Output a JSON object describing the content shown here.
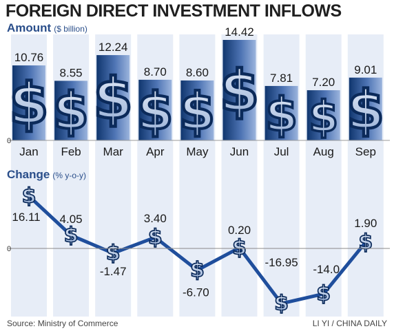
{
  "title": "FOREIGN DIRECT INVESTMENT INFLOWS",
  "source": "Source: Ministry of Commerce",
  "credit": "LI YI / CHINA DAILY",
  "colors": {
    "bar_dark": "#10366e",
    "bar_light": "#9bb4dd",
    "line": "#1f4e9c",
    "stripe": "#e7edf7",
    "label_blue": "#2a4e8a"
  },
  "chart_data": [
    {
      "type": "bar",
      "title": "Amount",
      "ylabel": "($ billion)",
      "categories": [
        "Jan",
        "Feb",
        "Mar",
        "Apr",
        "May",
        "Jun",
        "Jul",
        "Aug",
        "Sep"
      ],
      "values": [
        10.76,
        8.55,
        12.24,
        8.7,
        8.6,
        14.42,
        7.81,
        7.2,
        9.01
      ],
      "value_labels": [
        "10.76",
        "8.55",
        "12.24",
        "8.70",
        "8.60",
        "14.42",
        "7.81",
        "7.20",
        "9.01"
      ],
      "y_ticks": [
        "0"
      ],
      "ylim": [
        0,
        14.42
      ],
      "grid": false,
      "marker_icon": "dollar-sign-icon"
    },
    {
      "type": "line",
      "title": "Change",
      "ylabel": "(% y-o-y)",
      "categories": [
        "Jan",
        "Feb",
        "Mar",
        "Apr",
        "May",
        "Jun",
        "Jul",
        "Aug",
        "Sep"
      ],
      "values": [
        16.11,
        4.05,
        -1.47,
        3.4,
        -6.7,
        0.2,
        -16.95,
        -14.0,
        1.9
      ],
      "value_labels": [
        "16.11",
        "4.05",
        "-1.47",
        "3.40",
        "-6.70",
        "0.20",
        "-16.95",
        "-14.0",
        "1.90"
      ],
      "y_ticks": [
        "0"
      ],
      "ylim": [
        -16.95,
        16.11
      ],
      "grid": false,
      "marker_icon": "dollar-sign-icon"
    }
  ]
}
